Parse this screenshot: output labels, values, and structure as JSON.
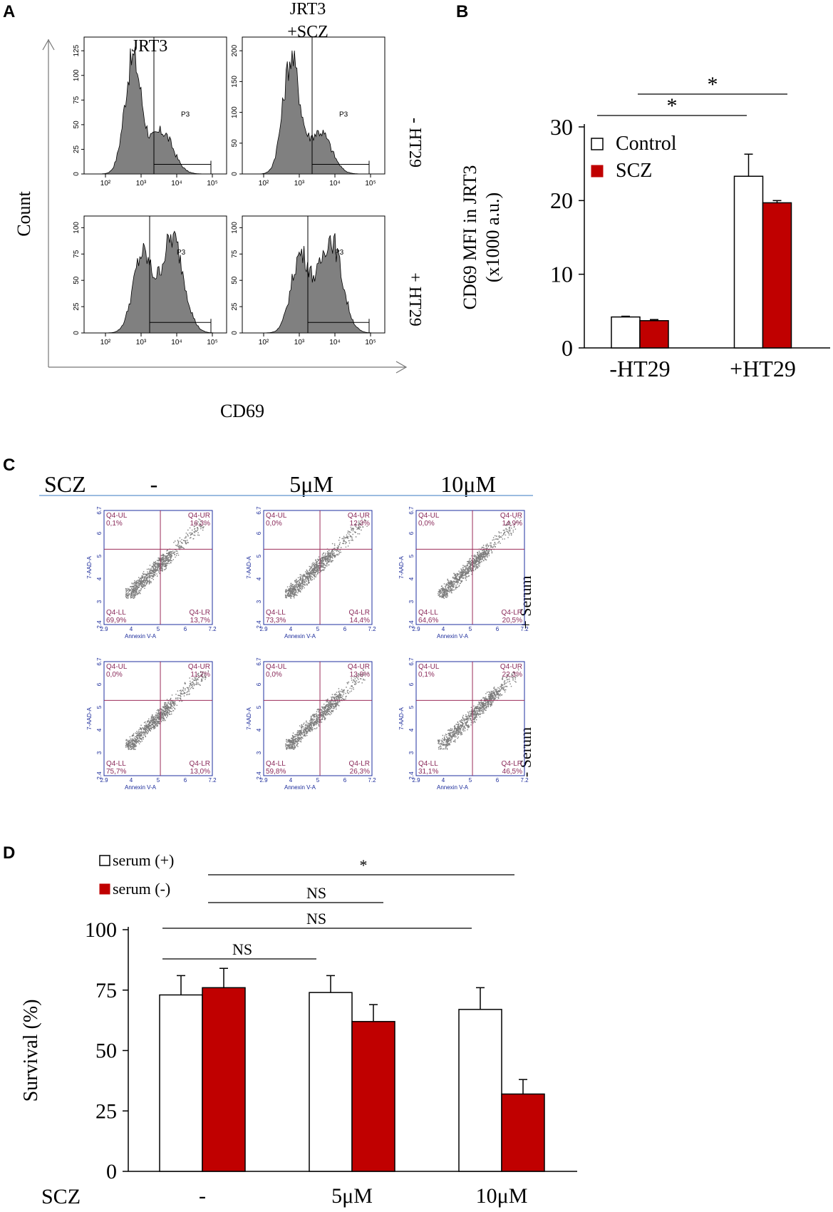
{
  "panels": {
    "a": "A",
    "b": "B",
    "c": "C",
    "d": "D"
  },
  "colors": {
    "control": "#ffffff",
    "treated": "#c00000",
    "hist_fill": "#808080",
    "facs_gate": "#9b2d5a",
    "facs_axis": "#1f2f9f",
    "facs_header_line": "#7aa6d6"
  },
  "panelA": {
    "col_labels": [
      "JRT3",
      "JRT3",
      "+SCZ"
    ],
    "row_labels": [
      "- HT29",
      "+ HT29"
    ],
    "ylabel": "Count",
    "xlabel": "CD69",
    "gate_label": "P3",
    "x_ticks": [
      "10²",
      "10³",
      "10⁴",
      "10⁵"
    ],
    "y_ticks": {
      "top_left": [
        "0",
        "25",
        "50",
        "75",
        "100",
        "125"
      ],
      "top_right": [
        "0",
        "50",
        "100",
        "150",
        "200"
      ],
      "bottom_left": [
        "0",
        "25",
        "50",
        "75",
        "100"
      ],
      "bottom_right": [
        "0",
        "25",
        "50",
        "75",
        "100"
      ]
    }
  },
  "panelC": {
    "header_label": "SCZ",
    "conditions": [
      "-",
      "5μM",
      "10μM"
    ],
    "row_labels": [
      "+ Serum",
      "- Serum"
    ],
    "x_axis_label": "Annexin V-A",
    "y_axis_label": "7-AAD-A",
    "quadrant_names": [
      "Q4-UL",
      "Q4-UR",
      "Q4-LL",
      "Q4-LR"
    ],
    "plots": [
      {
        "UL": "0,1%",
        "UR": "16,3%",
        "LL": "69,9%",
        "LR": "13,7%"
      },
      {
        "UL": "0,0%",
        "UR": "12,3%",
        "LL": "73,3%",
        "LR": "14,4%"
      },
      {
        "UL": "0,0%",
        "UR": "14,9%",
        "LL": "64,6%",
        "LR": "20,5%"
      },
      {
        "UL": "0,0%",
        "UR": "11,2%",
        "LL": "75,7%",
        "LR": "13,0%"
      },
      {
        "UL": "0,0%",
        "UR": "13,9%",
        "LL": "59,8%",
        "LR": "26,3%"
      },
      {
        "UL": "0,1%",
        "UR": "22,3%",
        "LL": "31,1%",
        "LR": "46,5%"
      }
    ],
    "x_ticks": [
      "2.9",
      "4",
      "5",
      "6",
      "7.2"
    ],
    "y_ticks": [
      "2.4",
      "3",
      "4",
      "5",
      "6",
      "6.7"
    ]
  },
  "chart_data": [
    {
      "type": "bar",
      "panel": "B",
      "categories": [
        "-HT29",
        "+HT29"
      ],
      "series": [
        {
          "name": "Control",
          "values": [
            4.2,
            23.3
          ],
          "errors": [
            0.1,
            3.0
          ]
        },
        {
          "name": "SCZ",
          "values": [
            3.7,
            19.7
          ],
          "errors": [
            0.15,
            0.3
          ]
        }
      ],
      "title": "",
      "xlabel": "",
      "ylabel": "CD69 MFI in JRT3",
      "ylabel2": "(x1000 a.u.)",
      "ylim": [
        0,
        30
      ],
      "yticks": [
        "0",
        "10",
        "20",
        "30"
      ],
      "legend": [
        "Control",
        "SCZ"
      ],
      "legend_position": "top-left",
      "significance": [
        {
          "label": "*"
        },
        {
          "label": "*"
        }
      ]
    },
    {
      "type": "bar",
      "panel": "D",
      "categories": [
        "-",
        "5μM",
        "10μM"
      ],
      "category_axis_label": "SCZ",
      "series": [
        {
          "name": "serum (+)",
          "values": [
            73,
            74,
            67
          ],
          "errors": [
            8,
            7,
            9
          ]
        },
        {
          "name": "serum (-)",
          "values": [
            76,
            62,
            32
          ],
          "errors": [
            8,
            7,
            6
          ]
        }
      ],
      "title": "",
      "xlabel": "",
      "ylabel": "Survival (%)",
      "ylim": [
        0,
        100
      ],
      "yticks": [
        "0",
        "25",
        "50",
        "75",
        "100"
      ],
      "legend": [
        "serum (+)",
        "serum (-)"
      ],
      "legend_position": "top-left",
      "significance": [
        {
          "label": "*"
        },
        {
          "label": "NS"
        },
        {
          "label": "NS"
        },
        {
          "label": "NS"
        }
      ]
    }
  ]
}
